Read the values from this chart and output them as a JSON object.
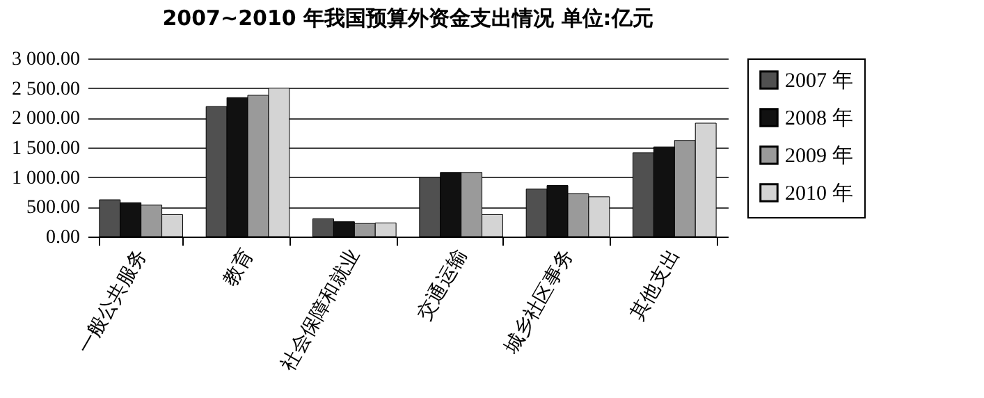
{
  "chart_data": {
    "type": "bar",
    "title": "2007~2010 年我国预算外资金支出情况    单位:亿元",
    "categories": [
      "一般公共服务",
      "教育",
      "社会保障和就业",
      "交通运输",
      "城乡社区事务",
      "其他支出"
    ],
    "series": [
      {
        "name": "2007 年",
        "color": "#505050",
        "values": [
          620,
          2190,
          300,
          1000,
          800,
          1410
        ]
      },
      {
        "name": "2008 年",
        "color": "#111111",
        "values": [
          570,
          2340,
          250,
          1080,
          860,
          1510
        ]
      },
      {
        "name": "2009 年",
        "color": "#9a9a9a",
        "values": [
          530,
          2380,
          220,
          1080,
          720,
          1620
        ]
      },
      {
        "name": "2010 年",
        "color": "#d4d4d4",
        "values": [
          370,
          2500,
          230,
          370,
          670,
          1910
        ]
      }
    ],
    "ylim": [
      0,
      3000
    ],
    "yticks": [
      {
        "value": 0,
        "label": "0.00"
      },
      {
        "value": 500,
        "label": "500.00"
      },
      {
        "value": 1000,
        "label": "1 000.00"
      },
      {
        "value": 1500,
        "label": "1 500.00"
      },
      {
        "value": 2000,
        "label": "2 000.00"
      },
      {
        "value": 2500,
        "label": "2 500.00"
      },
      {
        "value": 3000,
        "label": "3 000.00"
      }
    ],
    "grid": "y",
    "legend": "right"
  }
}
